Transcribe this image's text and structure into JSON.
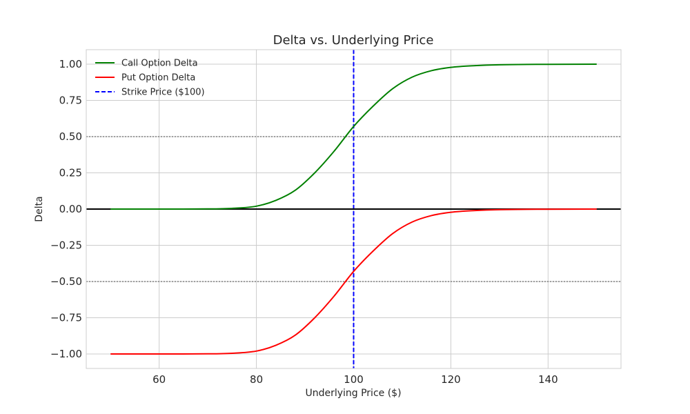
{
  "chart_data": {
    "type": "line",
    "title": "Delta vs. Underlying Price",
    "xlabel": "Underlying Price ($)",
    "ylabel": "Delta",
    "xlim": [
      45,
      155
    ],
    "ylim": [
      -1.1,
      1.1
    ],
    "xticks": [
      60,
      80,
      100,
      120,
      140
    ],
    "xtick_labels": [
      "60",
      "80",
      "100",
      "120",
      "140"
    ],
    "yticks": [
      1.0,
      0.75,
      0.5,
      0.25,
      0.0,
      -0.25,
      -0.5,
      -0.75,
      -1.0
    ],
    "ytick_labels": [
      "1.00",
      "0.75",
      "0.50",
      "0.25",
      "0.00",
      "−0.25",
      "−0.50",
      "−0.75",
      "−1.00"
    ],
    "grid": true,
    "legend_position": "top-left",
    "x": [
      50,
      60,
      70,
      75,
      80,
      84,
      88,
      92,
      96,
      100,
      104,
      108,
      112,
      116,
      120,
      125,
      130,
      140,
      150
    ],
    "series": [
      {
        "name": "Call Option Delta",
        "color": "#008000",
        "style": "solid",
        "values": [
          0.0,
          0.0,
          0.001,
          0.005,
          0.02,
          0.06,
          0.13,
          0.25,
          0.4,
          0.57,
          0.71,
          0.83,
          0.91,
          0.955,
          0.978,
          0.99,
          0.996,
          0.999,
          1.0
        ]
      },
      {
        "name": "Put Option Delta",
        "color": "#ff0000",
        "style": "solid",
        "values": [
          -1.0,
          -1.0,
          -0.999,
          -0.995,
          -0.98,
          -0.94,
          -0.87,
          -0.75,
          -0.6,
          -0.43,
          -0.29,
          -0.17,
          -0.09,
          -0.045,
          -0.022,
          -0.01,
          -0.004,
          -0.001,
          0.0
        ]
      }
    ],
    "reference_lines": [
      {
        "name": "Strike Price ($100)",
        "orientation": "vertical",
        "value": 100,
        "color": "#0000ff",
        "style": "dashed",
        "in_legend": true
      },
      {
        "orientation": "horizontal",
        "value": 0.0,
        "color": "#000000",
        "style": "solid",
        "in_legend": false
      },
      {
        "orientation": "horizontal",
        "value": 0.5,
        "color": "#808080",
        "style": "dotted",
        "in_legend": false
      },
      {
        "orientation": "horizontal",
        "value": -0.5,
        "color": "#808080",
        "style": "dotted",
        "in_legend": false
      }
    ]
  }
}
